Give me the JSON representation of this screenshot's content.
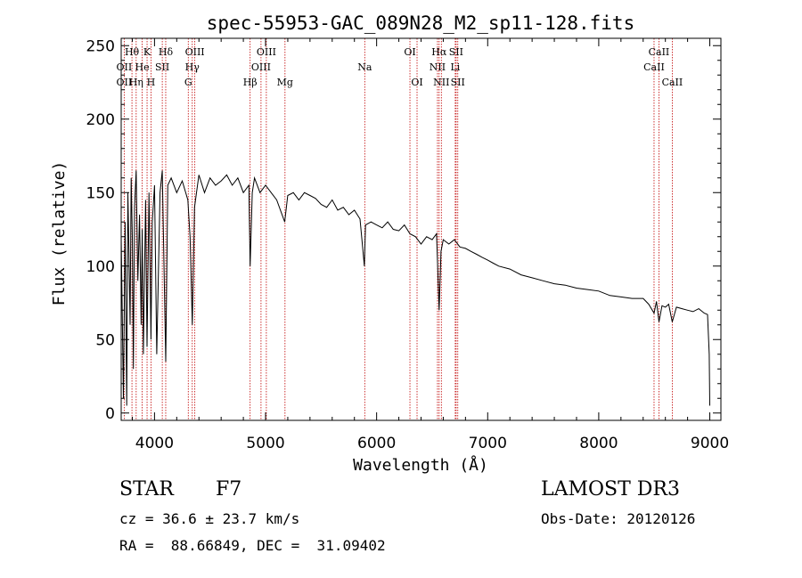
{
  "chart_data": {
    "type": "line",
    "title": "spec-55953-GAC_089N28_M2_sp11-128.fits",
    "xlabel": "Wavelength (Å)",
    "ylabel": "Flux (relative)",
    "xlim": [
      3700,
      9100
    ],
    "ylim": [
      -5,
      255
    ],
    "x_ticks": [
      4000,
      5000,
      6000,
      7000,
      8000,
      9000
    ],
    "x_tick_labels": [
      "4000",
      "5000",
      "6000",
      "7000",
      "8000",
      "9000"
    ],
    "y_ticks": [
      0,
      50,
      100,
      150,
      200,
      250
    ],
    "y_tick_labels": [
      "0",
      "50",
      "100",
      "150",
      "200",
      "250"
    ],
    "series": [
      {
        "name": "flux",
        "x": [
          3700,
          3720,
          3735,
          3750,
          3760,
          3770,
          3780,
          3790,
          3800,
          3810,
          3820,
          3835,
          3850,
          3865,
          3880,
          3889,
          3900,
          3920,
          3933,
          3950,
          3960,
          3968,
          3980,
          4000,
          4020,
          4050,
          4070,
          4101,
          4120,
          4150,
          4200,
          4250,
          4300,
          4320,
          4340,
          4360,
          4400,
          4450,
          4500,
          4550,
          4600,
          4650,
          4700,
          4750,
          4800,
          4850,
          4861,
          4880,
          4900,
          4950,
          5000,
          5050,
          5100,
          5172,
          5200,
          5250,
          5300,
          5350,
          5400,
          5450,
          5500,
          5550,
          5600,
          5650,
          5700,
          5750,
          5800,
          5850,
          5890,
          5900,
          5950,
          6000,
          6050,
          6100,
          6150,
          6200,
          6250,
          6300,
          6350,
          6400,
          6450,
          6500,
          6540,
          6563,
          6580,
          6600,
          6650,
          6700,
          6750,
          6800,
          6850,
          6900,
          6950,
          7000,
          7050,
          7100,
          7200,
          7300,
          7400,
          7500,
          7600,
          7700,
          7800,
          7900,
          8000,
          8100,
          8200,
          8300,
          8400,
          8450,
          8498,
          8520,
          8542,
          8570,
          8600,
          8630,
          8662,
          8700,
          8750,
          8800,
          8850,
          8900,
          8950,
          8980,
          8995,
          9000
        ],
        "y": [
          120,
          10,
          130,
          5,
          150,
          110,
          60,
          160,
          120,
          30,
          140,
          165,
          90,
          135,
          60,
          125,
          40,
          145,
          45,
          150,
          100,
          50,
          130,
          155,
          40,
          150,
          165,
          35,
          155,
          160,
          150,
          158,
          145,
          120,
          60,
          140,
          162,
          150,
          160,
          155,
          158,
          162,
          155,
          160,
          150,
          155,
          100,
          150,
          160,
          150,
          155,
          150,
          145,
          130,
          148,
          150,
          145,
          150,
          148,
          146,
          142,
          140,
          145,
          138,
          140,
          135,
          138,
          132,
          100,
          128,
          130,
          128,
          126,
          130,
          125,
          124,
          128,
          122,
          120,
          115,
          120,
          118,
          122,
          70,
          110,
          118,
          115,
          118,
          113,
          112,
          110,
          108,
          106,
          104,
          102,
          100,
          98,
          94,
          92,
          90,
          88,
          87,
          85,
          84,
          83,
          80,
          79,
          78,
          78,
          74,
          68,
          76,
          62,
          73,
          72,
          74,
          62,
          72,
          71,
          70,
          69,
          71,
          68,
          67,
          40,
          5
        ]
      }
    ],
    "lines": [
      {
        "label": "Hθ",
        "x": 3797,
        "row": 1
      },
      {
        "label": "K",
        "x": 3933,
        "row": 1
      },
      {
        "label": "Hδ",
        "x": 4101,
        "row": 1
      },
      {
        "label": "OIII",
        "x": 4363,
        "row": 1
      },
      {
        "label": "OIII",
        "x": 5007,
        "row": 1
      },
      {
        "label": "OI",
        "x": 6300,
        "row": 1
      },
      {
        "label": "Hα",
        "x": 6563,
        "row": 1
      },
      {
        "label": "SII",
        "x": 6716,
        "row": 1
      },
      {
        "label": "CaII",
        "x": 8542,
        "row": 1
      },
      {
        "label": "OII",
        "x": 3727,
        "row": 2
      },
      {
        "label": "He",
        "x": 3889,
        "row": 2
      },
      {
        "label": "SII",
        "x": 4070,
        "row": 2
      },
      {
        "label": "Hγ",
        "x": 4340,
        "row": 2
      },
      {
        "label": "OIII",
        "x": 4959,
        "row": 2
      },
      {
        "label": "Na",
        "x": 5893,
        "row": 2
      },
      {
        "label": "NII",
        "x": 6548,
        "row": 2
      },
      {
        "label": "Li",
        "x": 6708,
        "row": 2
      },
      {
        "label": "CaII",
        "x": 8498,
        "row": 2
      },
      {
        "label": "OII",
        "x": 3727,
        "row": 3
      },
      {
        "label": "Hη",
        "x": 3835,
        "row": 3
      },
      {
        "label": "H",
        "x": 3968,
        "row": 3
      },
      {
        "label": "G",
        "x": 4304,
        "row": 3
      },
      {
        "label": "Hβ",
        "x": 4861,
        "row": 3
      },
      {
        "label": "Mg",
        "x": 5175,
        "row": 3
      },
      {
        "label": "OI",
        "x": 6364,
        "row": 3
      },
      {
        "label": "NII",
        "x": 6583,
        "row": 3
      },
      {
        "label": "SII",
        "x": 6731,
        "row": 3
      },
      {
        "label": "CaII",
        "x": 8662,
        "row": 3
      }
    ],
    "colors": {
      "spectrum": "#000000",
      "line_marker": "#c00000",
      "axis": "#000000"
    }
  },
  "info": {
    "object_class": "STAR",
    "subclass": "F7",
    "survey": "LAMOST DR3",
    "redshift": "cz = 36.6 ± 23.7 km/s",
    "obs_date": "Obs-Date: 20120126",
    "coords": "RA =  88.66849, DEC =  31.09402"
  }
}
